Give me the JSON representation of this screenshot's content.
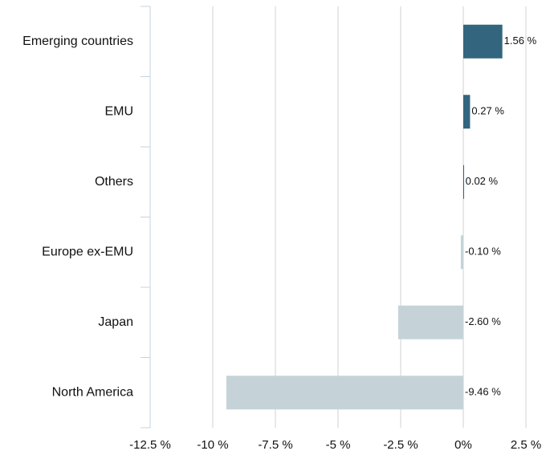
{
  "chart_data": {
    "type": "hbar",
    "categories": [
      "Emerging countries",
      "EMU",
      "Others",
      "Europe ex-EMU",
      "Japan",
      "North America"
    ],
    "values": [
      1.56,
      0.27,
      0.02,
      -0.1,
      -2.6,
      -9.46
    ],
    "value_labels": [
      "1.56 %",
      "0.27 %",
      "0.02 %",
      "-0.10 %",
      "-2.60 %",
      "-9.46 %"
    ],
    "colors": [
      "#33657f",
      "#33657f",
      "#33657f",
      "#c5d3d9",
      "#c5d3d9",
      "#c5d3d9"
    ],
    "xlim": [
      -12.5,
      2.5
    ],
    "xticks": [
      {
        "value": -12.5,
        "label": "-12.5 %"
      },
      {
        "value": -10,
        "label": "-10 %"
      },
      {
        "value": -7.5,
        "label": "-7.5 %"
      },
      {
        "value": -5,
        "label": "-5 %"
      },
      {
        "value": -2.5,
        "label": "-2.5 %"
      },
      {
        "value": 0,
        "label": "0%"
      },
      {
        "value": 2.5,
        "label": "2.5 %"
      }
    ],
    "grid": true
  }
}
